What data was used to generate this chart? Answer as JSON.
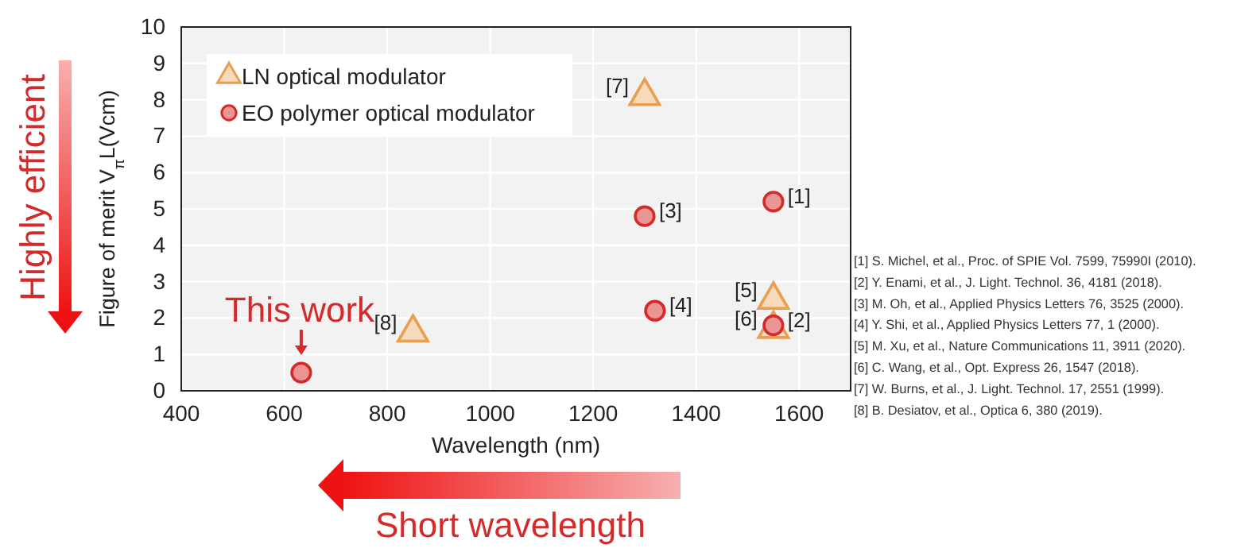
{
  "chart_data": {
    "type": "scatter",
    "xlabel": "Wavelength (nm)",
    "ylabel": "Figure of merit V$_{π}$L(Vcm)",
    "xlim": [
      400,
      1700
    ],
    "xticks": [
      400,
      600,
      800,
      1000,
      1200,
      1400,
      1600
    ],
    "ylim": [
      0,
      10
    ],
    "yticks": [
      0,
      1,
      2,
      3,
      4,
      5,
      6,
      7,
      8,
      9,
      10
    ],
    "grid": true,
    "legend": "top left",
    "series": [
      {
        "name": "LN optical modulator",
        "color": "#e8a050",
        "marker": "triangle",
        "x": [
          1300,
          850,
          1550,
          1550
        ],
        "values": [
          8.1,
          1.6,
          2.5,
          1.7
        ]
      },
      {
        "name": "EO polymer optical modulator",
        "color": "#d42a2a",
        "marker": "circle",
        "x": [
          1550,
          1300,
          1320,
          1550,
          633
        ],
        "values": [
          5.2,
          4.8,
          2.2,
          1.8,
          0.5
        ]
      }
    ],
    "annotations": [
      {
        "text": "[7]",
        "x": 1300,
        "y": 8.1
      },
      {
        "text": "[8]",
        "x": 850,
        "y": 1.6
      },
      {
        "text": "[5]",
        "x": 1550,
        "y": 2.5
      },
      {
        "text": "[6]",
        "x": 1550,
        "y": 1.7
      },
      {
        "text": "[1]",
        "x": 1550,
        "y": 5.2
      },
      {
        "text": "[3]",
        "x": 1300,
        "y": 4.8
      },
      {
        "text": "[4]",
        "x": 1320,
        "y": 2.2
      },
      {
        "text": "[2]",
        "x": 1550,
        "y": 1.8
      },
      {
        "text": "This work",
        "x": 633,
        "y": 0.5
      },
      "Highly efficient",
      "Short wavelength",
      "[1] S. Michel, et al., Proc. of SPIE Vol. 7599, 75990I (2010).",
      "[2] Y. Enami, et al., J. Light. Technol. 36, 4181 (2018).",
      "[3] M. Oh, et al., Applied Physics Letters 76, 3525 (2000).",
      "[4] Y. Shi, et al., Applied Physics Letters 77, 1 (2000).",
      "[5] M. Xu, et al., Nature Communications 11, 3911 (2020).",
      "[6] C. Wang, et al., Opt. Express 26, 1547 (2018).",
      "[7] W. Burns, et al., J. Light. Technol. 17, 2551 (1999).",
      "[8] B. Desiatov, et al., Optica 6, 380 (2019)."
    ]
  }
}
